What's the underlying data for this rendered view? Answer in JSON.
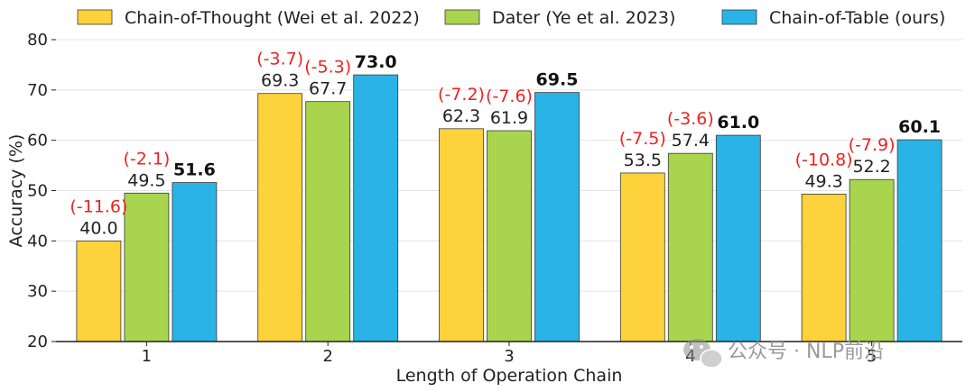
{
  "chart_data": {
    "type": "bar",
    "xlabel": "Length of Operation Chain",
    "ylabel": "Accuracy (%)",
    "ylim": [
      20,
      80
    ],
    "yticks": [
      20,
      30,
      40,
      50,
      60,
      70,
      80
    ],
    "categories": [
      "1",
      "2",
      "3",
      "4",
      "5"
    ],
    "grid": true,
    "legend_position": "top",
    "series": [
      {
        "name": "Chain-of-Thought (Wei et al. 2022)",
        "color": "#FDD23A",
        "values": [
          40.0,
          69.3,
          62.3,
          53.5,
          49.3
        ],
        "value_labels": [
          "40.0",
          "69.3",
          "62.3",
          "53.5",
          "49.3"
        ],
        "deltas": [
          "(-11.6)",
          "(-3.7)",
          "(-7.2)",
          "(-7.5)",
          "(-10.8)"
        ]
      },
      {
        "name": "Dater (Ye et al. 2023)",
        "color": "#A8D44E",
        "values": [
          49.5,
          67.7,
          61.9,
          57.4,
          52.2
        ],
        "value_labels": [
          "49.5",
          "67.7",
          "61.9",
          "57.4",
          "52.2"
        ],
        "deltas": [
          "(-2.1)",
          "(-5.3)",
          "(-7.6)",
          "(-3.6)",
          "(-7.9)"
        ]
      },
      {
        "name": "Chain-of-Table (ours)",
        "color": "#2AB3E6",
        "values": [
          51.6,
          73.0,
          69.5,
          61.0,
          60.1
        ],
        "value_labels": [
          "51.6",
          "73.0",
          "69.5",
          "61.0",
          "60.1"
        ],
        "bold_labels": true
      }
    ]
  },
  "watermark": {
    "text": "公众号 · NLP前沿",
    "icon": "wechat-icon"
  }
}
